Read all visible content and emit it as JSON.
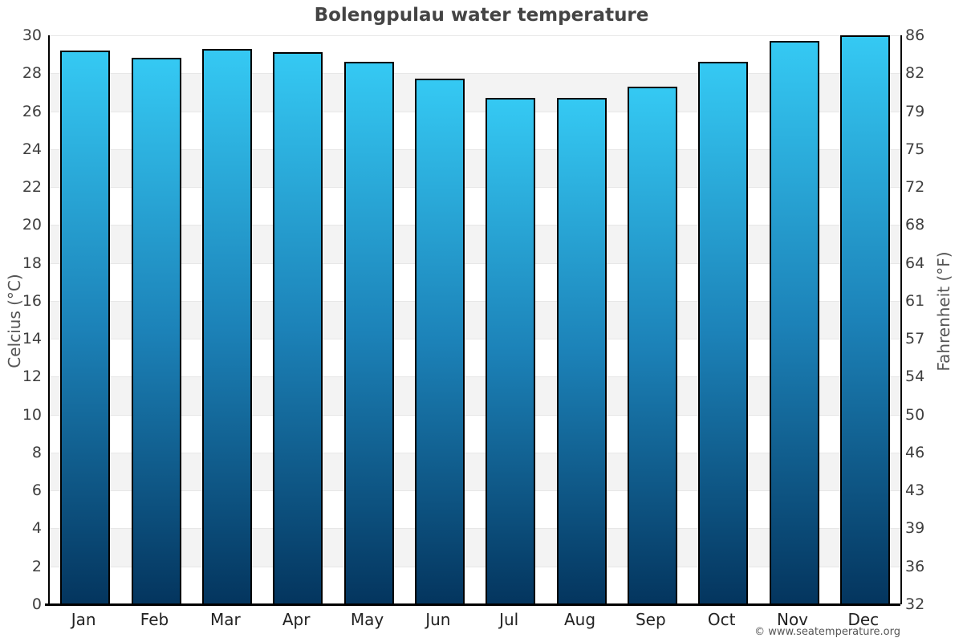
{
  "page": {
    "footer": "© www.seatemperature.org"
  },
  "chart_data": {
    "type": "bar",
    "title": "Bolengpulau water temperature",
    "categories": [
      "Jan",
      "Feb",
      "Mar",
      "Apr",
      "May",
      "Jun",
      "Jul",
      "Aug",
      "Sep",
      "Oct",
      "Nov",
      "Dec"
    ],
    "series": [
      {
        "name": "Water temperature (°C)",
        "values": [
          29.2,
          28.8,
          29.3,
          29.1,
          28.6,
          27.7,
          26.7,
          26.7,
          27.3,
          28.6,
          29.7,
          30.0
        ]
      },
      {
        "name": "Water temperature (°F)",
        "values": [
          84.6,
          83.8,
          84.7,
          84.4,
          83.5,
          81.9,
          80.1,
          80.1,
          81.1,
          83.5,
          85.5,
          86.0
        ]
      }
    ],
    "ylabel_left": "Celcius (°C)",
    "ylabel_right": "Fahrenheit (°F)",
    "xlabel": "",
    "ylim_celsius": [
      0,
      30
    ],
    "yticks_celsius": [
      0,
      2,
      4,
      6,
      8,
      10,
      12,
      14,
      16,
      18,
      20,
      22,
      24,
      26,
      28,
      30
    ],
    "ytick_labels_fahrenheit_bottom_to_top": [
      "32",
      "36",
      "39",
      "43",
      "46",
      "50",
      "54",
      "57",
      "61",
      "64",
      "68",
      "72",
      "75",
      "79",
      "82",
      "86"
    ],
    "legend_position": "none",
    "grid": "horizontal gridlines every 2°C with alternating white/gray bands",
    "colors": {
      "bar_gradient_top": "#35c9f3",
      "bar_gradient_mid": "#1c82b8",
      "bar_gradient_bottom": "#04355e",
      "bar_border": "#000000",
      "band_gray": "#f3f3f3",
      "band_white": "#ffffff",
      "gridline": "#e7e7e7",
      "axis_line": "#000000",
      "title_text": "#444444",
      "tick_text": "#3f3f3f",
      "axis_title_text": "#555555",
      "month_text": "#222222",
      "footer_text": "#555555"
    }
  }
}
